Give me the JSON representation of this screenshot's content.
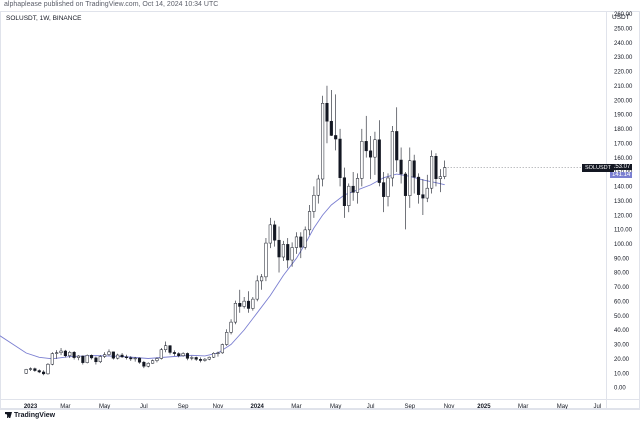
{
  "header": {
    "publisher": "alphaplease published on TradingView.com, Oct 14, 2024 10:34 UTC",
    "symbol_line": "SOLUSDT, 1W, BINANCE",
    "currency": "USDT"
  },
  "badges": {
    "symbol": "SOLUSDT",
    "price": "153.07",
    "ma": "141.14"
  },
  "footer": {
    "logo_text": "TradingView"
  },
  "colors": {
    "up_body": "#ffffff",
    "down_body": "#131722",
    "wick": "#131722",
    "ma_line": "#7b7fd1",
    "axis_text": "#131722",
    "axis_border": "#e0e3eb"
  },
  "chart_data": {
    "type": "candlestick",
    "title": "SOLUSDT, 1W, BINANCE",
    "yunit": "USDT",
    "ylim": [
      -8,
      262
    ],
    "yticks": [
      0,
      10,
      20,
      30,
      40,
      50,
      60,
      70,
      80,
      90,
      100,
      110,
      120,
      130,
      140,
      150,
      160,
      170,
      180,
      190,
      200,
      210,
      220,
      230,
      240,
      250,
      260
    ],
    "ytick_labels": [
      "0.00",
      "10.00",
      "20.00",
      "30.00",
      "40.00",
      "50.00",
      "60.00",
      "70.00",
      "80.00",
      "90.00",
      "100.00",
      "110.00",
      "120.00",
      "130.00",
      "140.00",
      "150.00",
      "160.00",
      "170.00",
      "180.00",
      "190.00",
      "200.00",
      "210.00",
      "220.00",
      "230.00",
      "240.00",
      "250.00",
      "260.00"
    ],
    "x_axis_labels": [
      {
        "label": "2023",
        "week": 1,
        "bold": true
      },
      {
        "label": "Mar",
        "week": 9
      },
      {
        "label": "May",
        "week": 18
      },
      {
        "label": "Jul",
        "week": 27
      },
      {
        "label": "Sep",
        "week": 36
      },
      {
        "label": "Nov",
        "week": 44
      },
      {
        "label": "2024",
        "week": 53,
        "bold": true
      },
      {
        "label": "Mar",
        "week": 62
      },
      {
        "label": "May",
        "week": 71
      },
      {
        "label": "Jul",
        "week": 79
      },
      {
        "label": "Sep",
        "week": 88
      },
      {
        "label": "Nov",
        "week": 97
      },
      {
        "label": "2025",
        "week": 105,
        "bold": true
      },
      {
        "label": "Mar",
        "week": 114
      },
      {
        "label": "May",
        "week": 123
      },
      {
        "label": "Jul",
        "week": 131
      }
    ],
    "x_range_weeks": [
      -6,
      133
    ],
    "candles": [
      {
        "o": 9.9,
        "h": 13.0,
        "l": 9.5,
        "c": 12.6
      },
      {
        "o": 12.6,
        "h": 14.0,
        "l": 11.5,
        "c": 13.1
      },
      {
        "o": 13.1,
        "h": 13.8,
        "l": 11.0,
        "c": 11.8
      },
      {
        "o": 11.8,
        "h": 12.6,
        "l": 10.0,
        "c": 10.8
      },
      {
        "o": 10.8,
        "h": 12.0,
        "l": 8.5,
        "c": 9.5
      },
      {
        "o": 9.5,
        "h": 17.0,
        "l": 9.0,
        "c": 16.2
      },
      {
        "o": 16.2,
        "h": 24.5,
        "l": 15.5,
        "c": 23.6
      },
      {
        "o": 23.6,
        "h": 26.0,
        "l": 20.0,
        "c": 24.2
      },
      {
        "o": 24.2,
        "h": 27.5,
        "l": 22.5,
        "c": 25.4
      },
      {
        "o": 25.4,
        "h": 26.2,
        "l": 21.0,
        "c": 22.1
      },
      {
        "o": 22.1,
        "h": 25.5,
        "l": 20.5,
        "c": 24.5
      },
      {
        "o": 24.5,
        "h": 25.4,
        "l": 19.5,
        "c": 20.8
      },
      {
        "o": 20.8,
        "h": 22.5,
        "l": 19.0,
        "c": 21.9
      },
      {
        "o": 21.9,
        "h": 22.3,
        "l": 16.0,
        "c": 17.3
      },
      {
        "o": 17.3,
        "h": 23.0,
        "l": 16.8,
        "c": 22.4
      },
      {
        "o": 22.4,
        "h": 23.0,
        "l": 19.5,
        "c": 20.6
      },
      {
        "o": 20.6,
        "h": 21.5,
        "l": 16.0,
        "c": 17.9
      },
      {
        "o": 17.9,
        "h": 22.5,
        "l": 17.0,
        "c": 21.6
      },
      {
        "o": 21.6,
        "h": 24.5,
        "l": 20.5,
        "c": 22.9
      },
      {
        "o": 22.9,
        "h": 26.5,
        "l": 22.0,
        "c": 24.8
      },
      {
        "o": 24.8,
        "h": 25.0,
        "l": 19.5,
        "c": 20.4
      },
      {
        "o": 20.4,
        "h": 23.5,
        "l": 19.5,
        "c": 22.6
      },
      {
        "o": 22.6,
        "h": 24.0,
        "l": 20.5,
        "c": 21.3
      },
      {
        "o": 21.3,
        "h": 22.8,
        "l": 19.5,
        "c": 20.7
      },
      {
        "o": 20.7,
        "h": 21.8,
        "l": 18.5,
        "c": 19.9
      },
      {
        "o": 19.9,
        "h": 21.3,
        "l": 18.0,
        "c": 20.5
      },
      {
        "o": 20.5,
        "h": 21.0,
        "l": 16.5,
        "c": 17.6
      },
      {
        "o": 17.6,
        "h": 18.5,
        "l": 13.5,
        "c": 14.8
      },
      {
        "o": 14.8,
        "h": 17.5,
        "l": 14.0,
        "c": 16.9
      },
      {
        "o": 16.9,
        "h": 19.5,
        "l": 16.5,
        "c": 18.7
      },
      {
        "o": 18.7,
        "h": 21.0,
        "l": 17.5,
        "c": 20.2
      },
      {
        "o": 20.2,
        "h": 27.5,
        "l": 19.5,
        "c": 26.3
      },
      {
        "o": 26.3,
        "h": 32.0,
        "l": 24.5,
        "c": 29.1
      },
      {
        "o": 29.1,
        "h": 29.5,
        "l": 23.0,
        "c": 24.4
      },
      {
        "o": 24.4,
        "h": 25.8,
        "l": 22.0,
        "c": 23.6
      },
      {
        "o": 23.6,
        "h": 24.5,
        "l": 21.0,
        "c": 22.1
      },
      {
        "o": 22.1,
        "h": 24.5,
        "l": 21.5,
        "c": 23.7
      },
      {
        "o": 23.7,
        "h": 24.4,
        "l": 19.0,
        "c": 20.3
      },
      {
        "o": 20.3,
        "h": 22.0,
        "l": 19.0,
        "c": 20.9
      },
      {
        "o": 20.9,
        "h": 21.5,
        "l": 18.5,
        "c": 19.6
      },
      {
        "o": 19.6,
        "h": 21.0,
        "l": 17.5,
        "c": 18.8
      },
      {
        "o": 18.8,
        "h": 20.5,
        "l": 18.0,
        "c": 19.7
      },
      {
        "o": 19.7,
        "h": 21.5,
        "l": 19.0,
        "c": 21.1
      },
      {
        "o": 21.1,
        "h": 24.5,
        "l": 20.5,
        "c": 23.8
      },
      {
        "o": 23.8,
        "h": 25.0,
        "l": 21.5,
        "c": 24.1
      },
      {
        "o": 24.1,
        "h": 30.5,
        "l": 23.5,
        "c": 29.9
      },
      {
        "o": 29.9,
        "h": 40.5,
        "l": 29.0,
        "c": 38.4
      },
      {
        "o": 38.4,
        "h": 47.5,
        "l": 37.0,
        "c": 45.5
      },
      {
        "o": 45.5,
        "h": 60.5,
        "l": 44.0,
        "c": 58.6
      },
      {
        "o": 58.6,
        "h": 68.0,
        "l": 52.0,
        "c": 56.4
      },
      {
        "o": 56.4,
        "h": 63.0,
        "l": 55.0,
        "c": 60.1
      },
      {
        "o": 60.1,
        "h": 67.0,
        "l": 52.0,
        "c": 55.0
      },
      {
        "o": 55.0,
        "h": 63.0,
        "l": 53.5,
        "c": 61.5
      },
      {
        "o": 61.5,
        "h": 78.0,
        "l": 60.0,
        "c": 74.2
      },
      {
        "o": 74.2,
        "h": 79.0,
        "l": 68.0,
        "c": 77.0
      },
      {
        "o": 77.0,
        "h": 104.0,
        "l": 74.0,
        "c": 100.5
      },
      {
        "o": 100.5,
        "h": 118.0,
        "l": 97.0,
        "c": 113.2
      },
      {
        "o": 113.2,
        "h": 116.0,
        "l": 98.0,
        "c": 102.5
      },
      {
        "o": 102.5,
        "h": 112.0,
        "l": 80.0,
        "c": 90.8
      },
      {
        "o": 90.8,
        "h": 102.0,
        "l": 88.0,
        "c": 99.6
      },
      {
        "o": 99.6,
        "h": 104.0,
        "l": 83.0,
        "c": 88.7
      },
      {
        "o": 88.7,
        "h": 101.0,
        "l": 84.0,
        "c": 97.4
      },
      {
        "o": 97.4,
        "h": 108.0,
        "l": 93.0,
        "c": 104.8
      },
      {
        "o": 104.8,
        "h": 108.0,
        "l": 90.0,
        "c": 97.6
      },
      {
        "o": 97.6,
        "h": 112.0,
        "l": 96.0,
        "c": 109.7
      },
      {
        "o": 109.7,
        "h": 127.0,
        "l": 106.0,
        "c": 122.5
      },
      {
        "o": 122.5,
        "h": 140.0,
        "l": 118.0,
        "c": 133.8
      },
      {
        "o": 133.8,
        "h": 148.0,
        "l": 128.0,
        "c": 145.1
      },
      {
        "o": 145.1,
        "h": 203.0,
        "l": 140.0,
        "c": 197.8
      },
      {
        "o": 197.8,
        "h": 210.0,
        "l": 170.0,
        "c": 185.3
      },
      {
        "o": 185.3,
        "h": 207.0,
        "l": 175.0,
        "c": 175.4
      },
      {
        "o": 175.4,
        "h": 204.0,
        "l": 165.0,
        "c": 172.9
      },
      {
        "o": 172.9,
        "h": 180.0,
        "l": 140.0,
        "c": 146.0
      },
      {
        "o": 146.0,
        "h": 153.0,
        "l": 118.0,
        "c": 126.5
      },
      {
        "o": 126.5,
        "h": 142.0,
        "l": 122.0,
        "c": 140.1
      },
      {
        "o": 140.1,
        "h": 150.0,
        "l": 130.0,
        "c": 135.8
      },
      {
        "o": 135.8,
        "h": 149.0,
        "l": 128.0,
        "c": 145.5
      },
      {
        "o": 145.5,
        "h": 180.0,
        "l": 140.0,
        "c": 171.3
      },
      {
        "o": 171.3,
        "h": 189.0,
        "l": 160.0,
        "c": 164.7
      },
      {
        "o": 164.7,
        "h": 175.0,
        "l": 145.0,
        "c": 160.3
      },
      {
        "o": 160.3,
        "h": 178.0,
        "l": 148.0,
        "c": 172.4
      },
      {
        "o": 172.4,
        "h": 186.0,
        "l": 140.0,
        "c": 142.6
      },
      {
        "o": 142.6,
        "h": 150.0,
        "l": 122.0,
        "c": 132.8
      },
      {
        "o": 132.8,
        "h": 149.0,
        "l": 126.0,
        "c": 145.8
      },
      {
        "o": 145.8,
        "h": 182.0,
        "l": 140.0,
        "c": 178.2
      },
      {
        "o": 178.2,
        "h": 195.0,
        "l": 150.0,
        "c": 158.3
      },
      {
        "o": 158.3,
        "h": 167.0,
        "l": 142.0,
        "c": 148.6
      },
      {
        "o": 148.6,
        "h": 150.0,
        "l": 110.0,
        "c": 133.5
      },
      {
        "o": 133.5,
        "h": 167.0,
        "l": 125.0,
        "c": 157.8
      },
      {
        "o": 157.8,
        "h": 162.0,
        "l": 135.0,
        "c": 146.4
      },
      {
        "o": 146.4,
        "h": 149.0,
        "l": 128.0,
        "c": 134.2
      },
      {
        "o": 134.2,
        "h": 145.0,
        "l": 120.0,
        "c": 131.8
      },
      {
        "o": 131.8,
        "h": 148.0,
        "l": 129.0,
        "c": 138.7
      },
      {
        "o": 138.7,
        "h": 165.0,
        "l": 135.0,
        "c": 160.9
      },
      {
        "o": 160.9,
        "h": 163.0,
        "l": 140.0,
        "c": 145.3
      },
      {
        "o": 145.3,
        "h": 152.0,
        "l": 136.0,
        "c": 146.8
      },
      {
        "o": 146.8,
        "h": 158.0,
        "l": 145.0,
        "c": 153.07
      }
    ],
    "moving_average": {
      "name": "MA",
      "last": 141.14,
      "points": [
        {
          "week": -6,
          "v": 36.0
        },
        {
          "week": -3,
          "v": 30.0
        },
        {
          "week": 0,
          "v": 24.0
        },
        {
          "week": 3,
          "v": 21.0
        },
        {
          "week": 6,
          "v": 20.0
        },
        {
          "week": 10,
          "v": 21.5
        },
        {
          "week": 16,
          "v": 22.2
        },
        {
          "week": 22,
          "v": 21.6
        },
        {
          "week": 28,
          "v": 20.2
        },
        {
          "week": 34,
          "v": 21.6
        },
        {
          "week": 38,
          "v": 22.4
        },
        {
          "week": 41,
          "v": 22.0
        },
        {
          "week": 44,
          "v": 24.0
        },
        {
          "week": 47,
          "v": 30.0
        },
        {
          "week": 50,
          "v": 40.0
        },
        {
          "week": 53,
          "v": 52.0
        },
        {
          "week": 56,
          "v": 64.0
        },
        {
          "week": 59,
          "v": 78.0
        },
        {
          "week": 62,
          "v": 90.0
        },
        {
          "week": 64,
          "v": 100.0
        },
        {
          "week": 66,
          "v": 111.0
        },
        {
          "week": 68,
          "v": 120.0
        },
        {
          "week": 70,
          "v": 127.0
        },
        {
          "week": 73,
          "v": 134.0
        },
        {
          "week": 76,
          "v": 137.5
        },
        {
          "week": 79,
          "v": 141.0
        },
        {
          "week": 82,
          "v": 146.0
        },
        {
          "week": 85,
          "v": 148.5
        },
        {
          "week": 88,
          "v": 147.0
        },
        {
          "week": 91,
          "v": 144.5
        },
        {
          "week": 94,
          "v": 142.5
        },
        {
          "week": 96,
          "v": 141.14
        }
      ]
    }
  }
}
